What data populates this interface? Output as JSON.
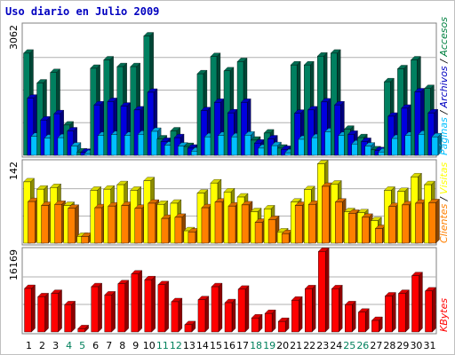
{
  "title": "Uso diario en Julio 2009",
  "right_labels": {
    "panel1": [
      {
        "text": "Páginas",
        "color": "#00c0ff"
      },
      {
        "text": "Archivos",
        "color": "#0000c0"
      },
      {
        "text": "Accesos",
        "color": "#008040"
      }
    ],
    "panel2": [
      {
        "text": "Clientes",
        "color": "#ff8000"
      },
      {
        "text": "Visitas",
        "color": "#ffff00"
      }
    ],
    "panel3": [
      {
        "text": "KBytes",
        "color": "#ff0000"
      }
    ],
    "separator": "/"
  },
  "weekend_days": [
    4,
    5,
    11,
    12,
    18,
    19,
    25,
    26
  ],
  "day_label_colors": {
    "weekday": "#000000",
    "weekend": "#00805c"
  },
  "chart_data": [
    {
      "type": "bar",
      "panel": "hits",
      "ymax_label": "3062",
      "ylim": [
        0,
        3062
      ],
      "categories": [
        "1",
        "2",
        "3",
        "4",
        "5",
        "6",
        "7",
        "8",
        "9",
        "10",
        "11",
        "12",
        "13",
        "14",
        "15",
        "16",
        "17",
        "18",
        "19",
        "20",
        "21",
        "22",
        "23",
        "24",
        "25",
        "26",
        "27",
        "28",
        "29",
        "30",
        "31"
      ],
      "series": [
        {
          "name": "Accesos",
          "color": "#008060",
          "values": [
            2430,
            1720,
            1970,
            720,
            80,
            2070,
            2270,
            2110,
            2110,
            2840,
            390,
            580,
            210,
            1940,
            2350,
            2010,
            2230,
            360,
            530,
            170,
            2150,
            2150,
            2360,
            2430,
            620,
            420,
            130,
            1750,
            2060,
            2270,
            1590
          ]
        },
        {
          "name": "Archivos",
          "color": "#0000e0",
          "values": [
            1360,
            840,
            990,
            580,
            70,
            1200,
            1280,
            1170,
            1080,
            1500,
            330,
            420,
            170,
            1060,
            1260,
            1010,
            1260,
            290,
            390,
            140,
            1000,
            1080,
            1270,
            1200,
            500,
            330,
            110,
            930,
            1120,
            1510,
            1010
          ]
        },
        {
          "name": "Páginas",
          "color": "#00c0ff",
          "values": [
            450,
            410,
            420,
            220,
            40,
            470,
            490,
            470,
            500,
            570,
            240,
            220,
            100,
            440,
            470,
            440,
            480,
            170,
            230,
            60,
            380,
            420,
            560,
            470,
            270,
            220,
            80,
            400,
            470,
            500,
            440
          ]
        }
      ]
    },
    {
      "type": "bar",
      "panel": "visits",
      "ymax_label": "142",
      "ylim": [
        0,
        142
      ],
      "categories": [
        "1",
        "2",
        "3",
        "4",
        "5",
        "6",
        "7",
        "8",
        "9",
        "10",
        "11",
        "12",
        "13",
        "14",
        "15",
        "16",
        "17",
        "18",
        "19",
        "20",
        "21",
        "22",
        "23",
        "24",
        "25",
        "26",
        "27",
        "28",
        "29",
        "30",
        "31"
      ],
      "series": [
        {
          "name": "Visitas",
          "color": "#ffff00",
          "values": [
            109,
            96,
            99,
            67,
            12,
            94,
            96,
            104,
            94,
            111,
            69,
            71,
            22,
            89,
            107,
            91,
            82,
            56,
            61,
            20,
            73,
            95,
            141,
            105,
            56,
            54,
            40,
            94,
            92,
            118,
            104
          ]
        },
        {
          "name": "Clientes",
          "color": "#ff8000",
          "values": [
            74,
            67,
            69,
            62,
            12,
            63,
            66,
            67,
            62,
            71,
            44,
            46,
            20,
            63,
            73,
            66,
            68,
            37,
            42,
            17,
            67,
            69,
            101,
            73,
            53,
            46,
            26,
            65,
            68,
            71,
            72
          ]
        }
      ]
    },
    {
      "type": "bar",
      "panel": "kbytes",
      "ymax_label": "16169",
      "ylim": [
        0,
        16169
      ],
      "categories": [
        "1",
        "2",
        "3",
        "4",
        "5",
        "6",
        "7",
        "8",
        "9",
        "10",
        "11",
        "12",
        "13",
        "14",
        "15",
        "16",
        "17",
        "18",
        "19",
        "20",
        "21",
        "22",
        "23",
        "24",
        "25",
        "26",
        "27",
        "28",
        "29",
        "30",
        "31"
      ],
      "series": [
        {
          "name": "KBytes",
          "color": "#ff0000",
          "values": [
            8700,
            7050,
            7700,
            5450,
            650,
            9050,
            7400,
            9650,
            11600,
            10450,
            9450,
            6050,
            1450,
            6450,
            9050,
            5850,
            8550,
            2800,
            3700,
            2100,
            6350,
            8650,
            16100,
            8650,
            5450,
            3950,
            2300,
            7200,
            7700,
            11250,
            8200
          ]
        }
      ]
    }
  ]
}
